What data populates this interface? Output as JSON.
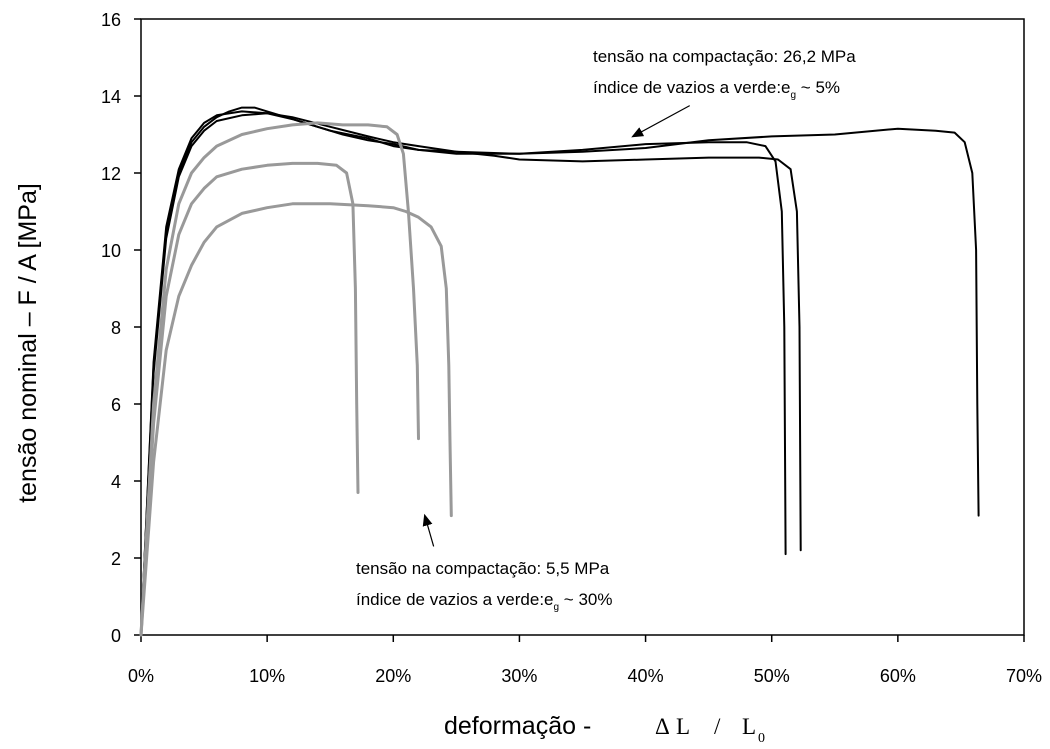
{
  "chart_data": {
    "type": "line",
    "xlabel_prefix": "deformação - ",
    "xlabel_formula": {
      "delta": "Δ",
      "L": "L",
      "slash": "/",
      "L0": "L",
      "L0_sub": "0"
    },
    "ylabel": "tensão nominal – F / A [MPa]",
    "xlim": [
      0,
      70
    ],
    "ylim": [
      0,
      16
    ],
    "x_unit": "%",
    "xticks": [
      0,
      10,
      20,
      30,
      40,
      50,
      60,
      70
    ],
    "yticks": [
      0,
      2,
      4,
      6,
      8,
      10,
      12,
      14,
      16
    ],
    "grid": false,
    "annotations": [
      {
        "line1": "tensão na compactação: 26,2 MPa",
        "line2_prefix": "índice de vazios a verde:e",
        "line2_sub": "g",
        "line2_suffix": " ~ 5%",
        "arrow_from": [
          43.5,
          13.75
        ],
        "arrow_to": [
          39.0,
          12.95
        ]
      },
      {
        "line1": "tensão na compactação: 5,5 MPa",
        "line2_prefix": "índice de vazios a verde:e",
        "line2_sub": "g",
        "line2_suffix": " ~ 30%",
        "arrow_from": [
          23.2,
          2.3
        ],
        "arrow_to": [
          22.5,
          3.1
        ]
      }
    ],
    "series": [
      {
        "color": "#000000",
        "points": [
          [
            0,
            0
          ],
          [
            1,
            7
          ],
          [
            2,
            10.5
          ],
          [
            3,
            12
          ],
          [
            4,
            12.8
          ],
          [
            5,
            13.2
          ],
          [
            6,
            13.45
          ],
          [
            7,
            13.6
          ],
          [
            8,
            13.7
          ],
          [
            9,
            13.7
          ],
          [
            10,
            13.6
          ],
          [
            12,
            13.4
          ],
          [
            14,
            13.2
          ],
          [
            16,
            13.0
          ],
          [
            18,
            12.85
          ],
          [
            20,
            12.75
          ],
          [
            22,
            12.6
          ],
          [
            25,
            12.55
          ],
          [
            30,
            12.5
          ],
          [
            35,
            12.6
          ],
          [
            40,
            12.75
          ],
          [
            45,
            12.8
          ],
          [
            48,
            12.8
          ],
          [
            49.5,
            12.7
          ],
          [
            50.3,
            12.3
          ],
          [
            50.8,
            11
          ],
          [
            51.0,
            8
          ],
          [
            51.1,
            2.1
          ]
        ]
      },
      {
        "color": "#000000",
        "points": [
          [
            0,
            0
          ],
          [
            1,
            6.8
          ],
          [
            2,
            10.3
          ],
          [
            3,
            11.9
          ],
          [
            4,
            12.7
          ],
          [
            5,
            13.1
          ],
          [
            6,
            13.35
          ],
          [
            8,
            13.5
          ],
          [
            10,
            13.55
          ],
          [
            12,
            13.45
          ],
          [
            15,
            13.2
          ],
          [
            18,
            12.95
          ],
          [
            20,
            12.8
          ],
          [
            22,
            12.7
          ],
          [
            25,
            12.55
          ],
          [
            28,
            12.45
          ],
          [
            30,
            12.35
          ],
          [
            35,
            12.3
          ],
          [
            40,
            12.35
          ],
          [
            45,
            12.4
          ],
          [
            49,
            12.4
          ],
          [
            50.5,
            12.35
          ],
          [
            51.5,
            12.1
          ],
          [
            52.0,
            11
          ],
          [
            52.2,
            8
          ],
          [
            52.3,
            2.2
          ]
        ]
      },
      {
        "color": "#000000",
        "points": [
          [
            0,
            0
          ],
          [
            1,
            7.1
          ],
          [
            2,
            10.6
          ],
          [
            3,
            12.1
          ],
          [
            4,
            12.9
          ],
          [
            5,
            13.3
          ],
          [
            6,
            13.5
          ],
          [
            8,
            13.6
          ],
          [
            10,
            13.55
          ],
          [
            12,
            13.4
          ],
          [
            15,
            13.1
          ],
          [
            18,
            12.9
          ],
          [
            20,
            12.7
          ],
          [
            22,
            12.6
          ],
          [
            25,
            12.5
          ],
          [
            28,
            12.5
          ],
          [
            30,
            12.5
          ],
          [
            35,
            12.55
          ],
          [
            40,
            12.65
          ],
          [
            45,
            12.85
          ],
          [
            50,
            12.95
          ],
          [
            55,
            13.0
          ],
          [
            60,
            13.15
          ],
          [
            63,
            13.1
          ],
          [
            64.5,
            13.05
          ],
          [
            65.3,
            12.8
          ],
          [
            65.9,
            12.0
          ],
          [
            66.2,
            10
          ],
          [
            66.3,
            6
          ],
          [
            66.4,
            3.1
          ]
        ]
      },
      {
        "color": "#999999",
        "points": [
          [
            0,
            0
          ],
          [
            1,
            6
          ],
          [
            2,
            9.5
          ],
          [
            3,
            11.2
          ],
          [
            4,
            12.0
          ],
          [
            5,
            12.4
          ],
          [
            6,
            12.7
          ],
          [
            8,
            13.0
          ],
          [
            10,
            13.15
          ],
          [
            12,
            13.25
          ],
          [
            14,
            13.3
          ],
          [
            16,
            13.25
          ],
          [
            18,
            13.25
          ],
          [
            19.5,
            13.2
          ],
          [
            20.3,
            13.0
          ],
          [
            20.8,
            12.5
          ],
          [
            21.2,
            11
          ],
          [
            21.6,
            9
          ],
          [
            21.9,
            7
          ],
          [
            22.0,
            5.1
          ]
        ]
      },
      {
        "color": "#999999",
        "points": [
          [
            0,
            0
          ],
          [
            1,
            5.5
          ],
          [
            2,
            8.8
          ],
          [
            3,
            10.4
          ],
          [
            4,
            11.2
          ],
          [
            5,
            11.6
          ],
          [
            6,
            11.9
          ],
          [
            8,
            12.1
          ],
          [
            10,
            12.2
          ],
          [
            12,
            12.25
          ],
          [
            14,
            12.25
          ],
          [
            15.5,
            12.2
          ],
          [
            16.3,
            12.0
          ],
          [
            16.8,
            11.2
          ],
          [
            17.0,
            9
          ],
          [
            17.1,
            6
          ],
          [
            17.2,
            3.7
          ]
        ]
      },
      {
        "color": "#999999",
        "points": [
          [
            0,
            0
          ],
          [
            1,
            4.5
          ],
          [
            2,
            7.4
          ],
          [
            3,
            8.8
          ],
          [
            4,
            9.6
          ],
          [
            5,
            10.2
          ],
          [
            6,
            10.6
          ],
          [
            8,
            10.95
          ],
          [
            10,
            11.1
          ],
          [
            12,
            11.2
          ],
          [
            15,
            11.2
          ],
          [
            18,
            11.15
          ],
          [
            20,
            11.1
          ],
          [
            21,
            11.0
          ],
          [
            22,
            10.85
          ],
          [
            23,
            10.6
          ],
          [
            23.8,
            10.1
          ],
          [
            24.2,
            9.0
          ],
          [
            24.4,
            7
          ],
          [
            24.5,
            5
          ],
          [
            24.6,
            3.1
          ]
        ]
      }
    ]
  }
}
